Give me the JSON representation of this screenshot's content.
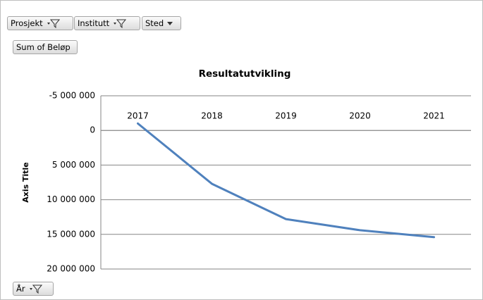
{
  "filters": [
    "Prosjekt",
    "Institutt",
    "Sted"
  ],
  "value_field": "Sum of Beløp",
  "axis_field": "År",
  "chart_data": {
    "type": "line",
    "title": "Resultatutvikling",
    "y_label": "Axis Title",
    "categories": [
      "2017",
      "2018",
      "2019",
      "2020",
      "2021"
    ],
    "values": [
      -1000000,
      7700000,
      12800000,
      14400000,
      15400000
    ],
    "color": "#4f81bd",
    "ylim": [
      -5000000,
      20000000
    ],
    "y_reversed": true,
    "yticks": [
      {
        "value": -5000000,
        "label": "-5 000 000"
      },
      0,
      {
        "value": 5000000,
        "label": "5 000 000"
      },
      {
        "value": 10000000,
        "label": "10 000 000"
      },
      {
        "value": 15000000,
        "label": "15 000 000"
      },
      {
        "value": 20000000,
        "label": "20 000 000"
      }
    ],
    "grid": true
  }
}
